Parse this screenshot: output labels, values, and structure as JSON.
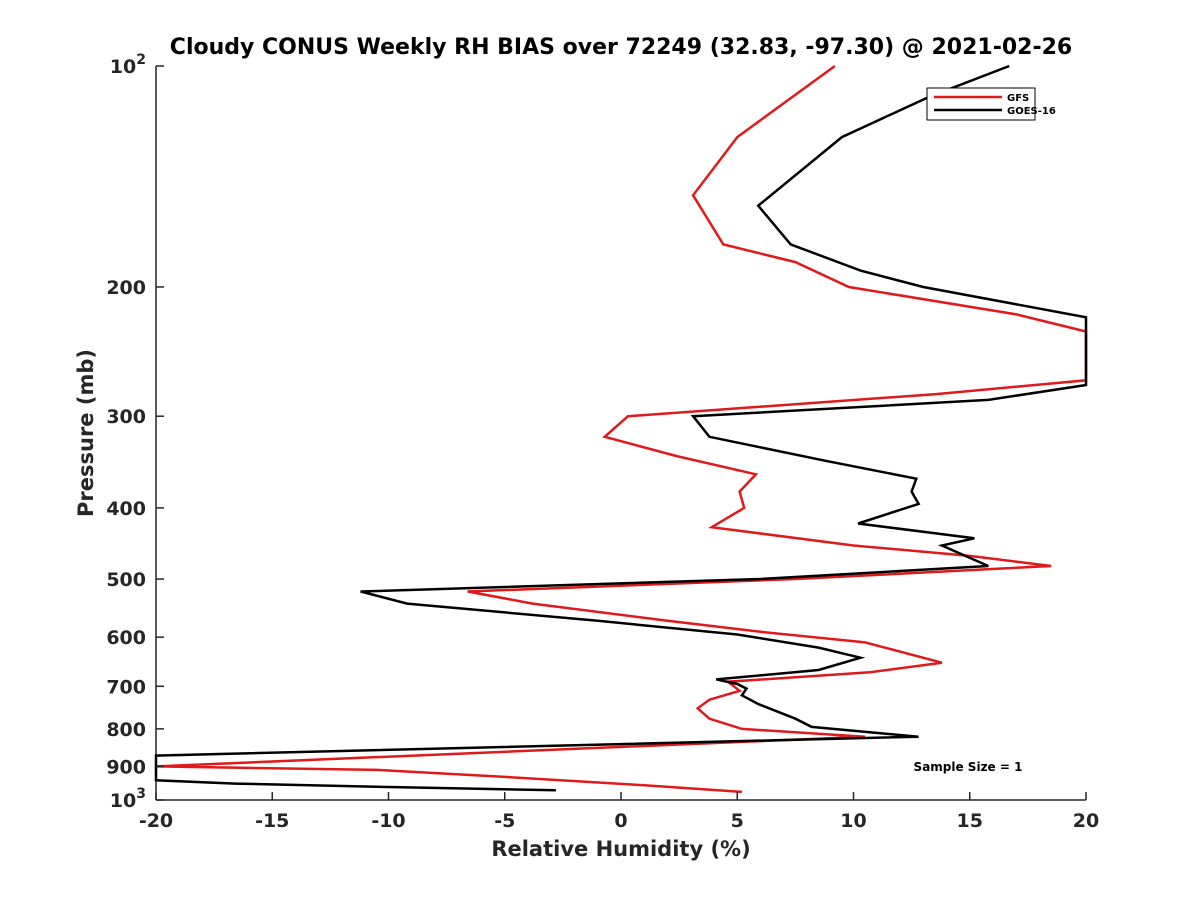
{
  "chart_data": {
    "type": "line",
    "title": "Cloudy CONUS Weekly RH BIAS over 72249 (32.83, -97.30) @ 2021-02-26",
    "xlabel": "Relative Humidity (%)",
    "ylabel": "Pressure (mb)",
    "xlim": [
      -20,
      20
    ],
    "ylim": [
      100,
      1000
    ],
    "y_scale": "log",
    "y_reversed": true,
    "grid": false,
    "legend_position": "top-right",
    "x_ticks": [
      {
        "value": -20,
        "label": "-20"
      },
      {
        "value": -15,
        "label": "-15"
      },
      {
        "value": -10,
        "label": "-10"
      },
      {
        "value": -5,
        "label": "-5"
      },
      {
        "value": 0,
        "label": "0"
      },
      {
        "value": 5,
        "label": "5"
      },
      {
        "value": 10,
        "label": "10"
      },
      {
        "value": 15,
        "label": "15"
      },
      {
        "value": 20,
        "label": "20"
      }
    ],
    "y_ticks": [
      {
        "value": 100,
        "base": "10",
        "exp": "2"
      },
      {
        "value": 200,
        "label": "200"
      },
      {
        "value": 300,
        "label": "300"
      },
      {
        "value": 400,
        "label": "400"
      },
      {
        "value": 500,
        "label": "500"
      },
      {
        "value": 600,
        "label": "600"
      },
      {
        "value": 700,
        "label": "700"
      },
      {
        "value": 800,
        "label": "800"
      },
      {
        "value": 900,
        "label": "900"
      },
      {
        "value": 1000,
        "base": "10",
        "exp": "3"
      }
    ],
    "series": [
      {
        "name": "GFS",
        "color": "#e0191a",
        "points": [
          [
            9.2,
            100
          ],
          [
            5.0,
            125
          ],
          [
            3.1,
            150
          ],
          [
            4.4,
            175
          ],
          [
            7.5,
            185
          ],
          [
            9.8,
            200
          ],
          [
            17.0,
            218
          ],
          [
            20.0,
            230
          ],
          [
            20.0,
            268
          ],
          [
            13.5,
            280
          ],
          [
            0.3,
            300
          ],
          [
            -0.7,
            320
          ],
          [
            2.4,
            340
          ],
          [
            5.8,
            360
          ],
          [
            5.1,
            380
          ],
          [
            5.3,
            400
          ],
          [
            3.9,
            425
          ],
          [
            10.0,
            450
          ],
          [
            15.0,
            465
          ],
          [
            18.5,
            480
          ],
          [
            7.5,
            500
          ],
          [
            -6.6,
            520
          ],
          [
            -3.8,
            540
          ],
          [
            2.0,
            570
          ],
          [
            6.0,
            590
          ],
          [
            10.5,
            610
          ],
          [
            13.8,
            650
          ],
          [
            10.7,
            670
          ],
          [
            4.6,
            690
          ],
          [
            5.1,
            710
          ],
          [
            3.8,
            730
          ],
          [
            3.3,
            750
          ],
          [
            3.8,
            775
          ],
          [
            5.2,
            800
          ],
          [
            10.5,
            820
          ],
          [
            -20.0,
            900
          ],
          [
            -10.5,
            910
          ],
          [
            -5.0,
            930
          ],
          [
            1.0,
            955
          ],
          [
            5.2,
            975
          ]
        ]
      },
      {
        "name": "GOES-16",
        "color": "#000000",
        "points": [
          [
            16.7,
            100
          ],
          [
            13.3,
            110
          ],
          [
            9.5,
            125
          ],
          [
            5.9,
            155
          ],
          [
            7.3,
            175
          ],
          [
            10.3,
            190
          ],
          [
            13.0,
            200
          ],
          [
            20.0,
            220
          ],
          [
            20.0,
            272
          ],
          [
            15.8,
            285
          ],
          [
            3.1,
            300
          ],
          [
            3.8,
            320
          ],
          [
            8.8,
            345
          ],
          [
            12.7,
            365
          ],
          [
            12.5,
            380
          ],
          [
            12.8,
            395
          ],
          [
            10.2,
            420
          ],
          [
            15.2,
            440
          ],
          [
            13.8,
            450
          ],
          [
            15.8,
            480
          ],
          [
            6.0,
            500
          ],
          [
            -11.2,
            520
          ],
          [
            -9.2,
            540
          ],
          [
            -1.0,
            570
          ],
          [
            5.0,
            595
          ],
          [
            8.5,
            620
          ],
          [
            10.3,
            640
          ],
          [
            8.5,
            665
          ],
          [
            4.1,
            685
          ],
          [
            5.0,
            695
          ],
          [
            5.4,
            705
          ],
          [
            5.2,
            720
          ],
          [
            5.9,
            740
          ],
          [
            7.5,
            775
          ],
          [
            8.2,
            795
          ],
          [
            12.8,
            820
          ],
          [
            -20.0,
            870
          ],
          [
            -20.0,
            940
          ],
          [
            -16.6,
            950
          ],
          [
            -10.0,
            960
          ],
          [
            -2.8,
            970
          ]
        ]
      }
    ],
    "annotation": "Sample Size = 1"
  }
}
